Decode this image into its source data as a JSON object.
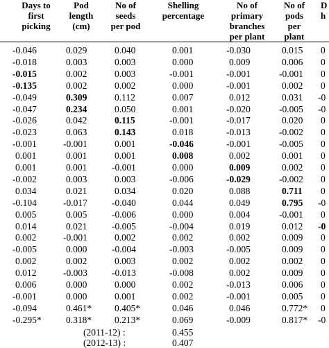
{
  "table": {
    "headers": [
      "Days to\nfirst\npicking",
      "Pod\nlength\n(cm)",
      "No of\nseeds\nper pod",
      "Shelling\npercentage",
      "No of\nprimary\nbranches\nper plant",
      "No of\npods\nper\nplant",
      "D\nh"
    ],
    "rows": [
      [
        {
          "v": "-0.046",
          "b": false
        },
        {
          "v": "0.029",
          "b": false
        },
        {
          "v": "0.040",
          "b": false
        },
        {
          "v": "0.001",
          "b": false
        },
        {
          "v": "-0.030",
          "b": false
        },
        {
          "v": "0.015",
          "b": false
        },
        {
          "v": "0",
          "b": false
        }
      ],
      [
        {
          "v": "-0.018",
          "b": false
        },
        {
          "v": "0.003",
          "b": false
        },
        {
          "v": "0.003",
          "b": false
        },
        {
          "v": "0.000",
          "b": false
        },
        {
          "v": "0.009",
          "b": false
        },
        {
          "v": "0.006",
          "b": false
        },
        {
          "v": "0",
          "b": false
        }
      ],
      [
        {
          "v": "-0.015",
          "b": true
        },
        {
          "v": "0.002",
          "b": false
        },
        {
          "v": "0.003",
          "b": false
        },
        {
          "v": "-0.001",
          "b": false
        },
        {
          "v": "-0.001",
          "b": false
        },
        {
          "v": "-0.001",
          "b": false
        },
        {
          "v": "0",
          "b": false
        }
      ],
      [
        {
          "v": "-0.135",
          "b": true
        },
        {
          "v": "0.002",
          "b": false
        },
        {
          "v": "0.002",
          "b": false
        },
        {
          "v": "0.000",
          "b": false
        },
        {
          "v": "-0.001",
          "b": false
        },
        {
          "v": "0.002",
          "b": false
        },
        {
          "v": "0",
          "b": false
        }
      ],
      [
        {
          "v": "-0.049",
          "b": false
        },
        {
          "v": "0.309",
          "b": true
        },
        {
          "v": "0.112",
          "b": false
        },
        {
          "v": "0.007",
          "b": false
        },
        {
          "v": "0.012",
          "b": false
        },
        {
          "v": "0.031",
          "b": false
        },
        {
          "v": "-0",
          "b": false
        }
      ],
      [
        {
          "v": "-0.047",
          "b": false
        },
        {
          "v": "0.234",
          "b": true
        },
        {
          "v": "0.050",
          "b": false
        },
        {
          "v": "0.001",
          "b": false
        },
        {
          "v": "-0.020",
          "b": false
        },
        {
          "v": "-0.005",
          "b": false
        },
        {
          "v": "-0",
          "b": false
        }
      ],
      [
        {
          "v": "-0.026",
          "b": false
        },
        {
          "v": "0.042",
          "b": false
        },
        {
          "v": "0.115",
          "b": true
        },
        {
          "v": "-0.001",
          "b": false
        },
        {
          "v": "-0.017",
          "b": false
        },
        {
          "v": "0.020",
          "b": false
        },
        {
          "v": "0",
          "b": false
        }
      ],
      [
        {
          "v": "-0.023",
          "b": false
        },
        {
          "v": "0.063",
          "b": false
        },
        {
          "v": "0.143",
          "b": true
        },
        {
          "v": "0.018",
          "b": false
        },
        {
          "v": "-0.013",
          "b": false
        },
        {
          "v": "-0.002",
          "b": false
        },
        {
          "v": "0",
          "b": false
        }
      ],
      [
        {
          "v": "-0.001",
          "b": false
        },
        {
          "v": "-0.001",
          "b": false
        },
        {
          "v": "0.001",
          "b": false
        },
        {
          "v": "-0.046",
          "b": true
        },
        {
          "v": "-0.001",
          "b": false
        },
        {
          "v": "-0.005",
          "b": false
        },
        {
          "v": "0",
          "b": false
        }
      ],
      [
        {
          "v": "0.001",
          "b": false
        },
        {
          "v": "0.001",
          "b": false
        },
        {
          "v": "0.001",
          "b": false
        },
        {
          "v": "0.008",
          "b": true
        },
        {
          "v": "0.002",
          "b": false
        },
        {
          "v": "0.001",
          "b": false
        },
        {
          "v": "0",
          "b": false
        }
      ],
      [
        {
          "v": "0.001",
          "b": false
        },
        {
          "v": "0.001",
          "b": false
        },
        {
          "v": "-0.001",
          "b": false
        },
        {
          "v": "0.000",
          "b": false
        },
        {
          "v": "0.009",
          "b": true
        },
        {
          "v": "0.002",
          "b": false
        },
        {
          "v": "0",
          "b": false
        }
      ],
      [
        {
          "v": "-0.002",
          "b": false
        },
        {
          "v": "0.003",
          "b": false
        },
        {
          "v": "0.003",
          "b": false
        },
        {
          "v": "-0.006",
          "b": false
        },
        {
          "v": "-0.029",
          "b": true
        },
        {
          "v": "-0.002",
          "b": false
        },
        {
          "v": "0",
          "b": false
        }
      ],
      [
        {
          "v": "0.034",
          "b": false
        },
        {
          "v": "0.021",
          "b": false
        },
        {
          "v": "0.034",
          "b": false
        },
        {
          "v": "0.020",
          "b": false
        },
        {
          "v": "0.088",
          "b": false
        },
        {
          "v": "0.711",
          "b": true
        },
        {
          "v": "0",
          "b": false
        }
      ],
      [
        {
          "v": "-0.104",
          "b": false
        },
        {
          "v": "-0.017",
          "b": false
        },
        {
          "v": "-0.040",
          "b": false
        },
        {
          "v": "0.044",
          "b": false
        },
        {
          "v": "0.049",
          "b": false
        },
        {
          "v": "0.795",
          "b": true
        },
        {
          "v": "-0",
          "b": false
        }
      ],
      [
        {
          "v": "0.005",
          "b": false
        },
        {
          "v": "0.005",
          "b": false
        },
        {
          "v": "-0.006",
          "b": false
        },
        {
          "v": "0.000",
          "b": false
        },
        {
          "v": "0.004",
          "b": false
        },
        {
          "v": "-0.001",
          "b": false
        },
        {
          "v": "0",
          "b": false
        }
      ],
      [
        {
          "v": "0.014",
          "b": false
        },
        {
          "v": "0.021",
          "b": false
        },
        {
          "v": "-0.005",
          "b": false
        },
        {
          "v": "-0.004",
          "b": false
        },
        {
          "v": "0.019",
          "b": false
        },
        {
          "v": "0.012",
          "b": false
        },
        {
          "v": "-0",
          "b": true
        }
      ],
      [
        {
          "v": "0.002",
          "b": false
        },
        {
          "v": "-0.001",
          "b": false
        },
        {
          "v": "0.002",
          "b": false
        },
        {
          "v": "0.002",
          "b": false
        },
        {
          "v": "0.002",
          "b": false
        },
        {
          "v": "0.009",
          "b": false
        },
        {
          "v": "0",
          "b": false
        }
      ],
      [
        {
          "v": "-0.005",
          "b": false
        },
        {
          "v": "0.000",
          "b": false
        },
        {
          "v": "-0.004",
          "b": false
        },
        {
          "v": "-0.003",
          "b": false
        },
        {
          "v": "-0.005",
          "b": false
        },
        {
          "v": "0.009",
          "b": false
        },
        {
          "v": "0",
          "b": false
        }
      ],
      [
        {
          "v": "0.002",
          "b": false
        },
        {
          "v": "0.002",
          "b": false
        },
        {
          "v": "0.003",
          "b": false
        },
        {
          "v": "0.002",
          "b": false
        },
        {
          "v": "0.002",
          "b": false
        },
        {
          "v": "0.002",
          "b": false
        },
        {
          "v": "0",
          "b": false
        }
      ],
      [
        {
          "v": "0.012",
          "b": false
        },
        {
          "v": "-0.003",
          "b": false
        },
        {
          "v": "-0.013",
          "b": false
        },
        {
          "v": "-0.008",
          "b": false
        },
        {
          "v": "0.002",
          "b": false
        },
        {
          "v": "0.009",
          "b": false
        },
        {
          "v": "0",
          "b": false
        }
      ],
      [
        {
          "v": "0.006",
          "b": false
        },
        {
          "v": "0.000",
          "b": false
        },
        {
          "v": "0.000",
          "b": false
        },
        {
          "v": "0.002",
          "b": false
        },
        {
          "v": "-0.013",
          "b": false
        },
        {
          "v": "0.006",
          "b": false
        },
        {
          "v": "0",
          "b": false
        }
      ],
      [
        {
          "v": "-0.001",
          "b": false
        },
        {
          "v": "0.000",
          "b": false
        },
        {
          "v": "0.001",
          "b": false
        },
        {
          "v": "0.002",
          "b": false
        },
        {
          "v": "-0.001",
          "b": false
        },
        {
          "v": "0.005",
          "b": false
        },
        {
          "v": "0",
          "b": false
        }
      ],
      [
        {
          "v": "-0.094",
          "b": false
        },
        {
          "v": "0.461*",
          "b": false
        },
        {
          "v": "0.405*",
          "b": false
        },
        {
          "v": "0.046",
          "b": false
        },
        {
          "v": "0.046",
          "b": false
        },
        {
          "v": "0.772*",
          "b": false
        },
        {
          "v": "0",
          "b": false
        }
      ],
      [
        {
          "v": "-0.295*",
          "b": false
        },
        {
          "v": "0.318*",
          "b": false
        },
        {
          "v": "0.213*",
          "b": false
        },
        {
          "v": "0.069",
          "b": false
        },
        {
          "v": "-0.009",
          "b": false
        },
        {
          "v": "0.817*",
          "b": false
        },
        {
          "v": "-0",
          "b": false
        }
      ]
    ],
    "footer": [
      {
        "label": "(2011-12) :",
        "value": "0.455"
      },
      {
        "label": "(2012-13) :",
        "value": "0.407"
      }
    ]
  }
}
